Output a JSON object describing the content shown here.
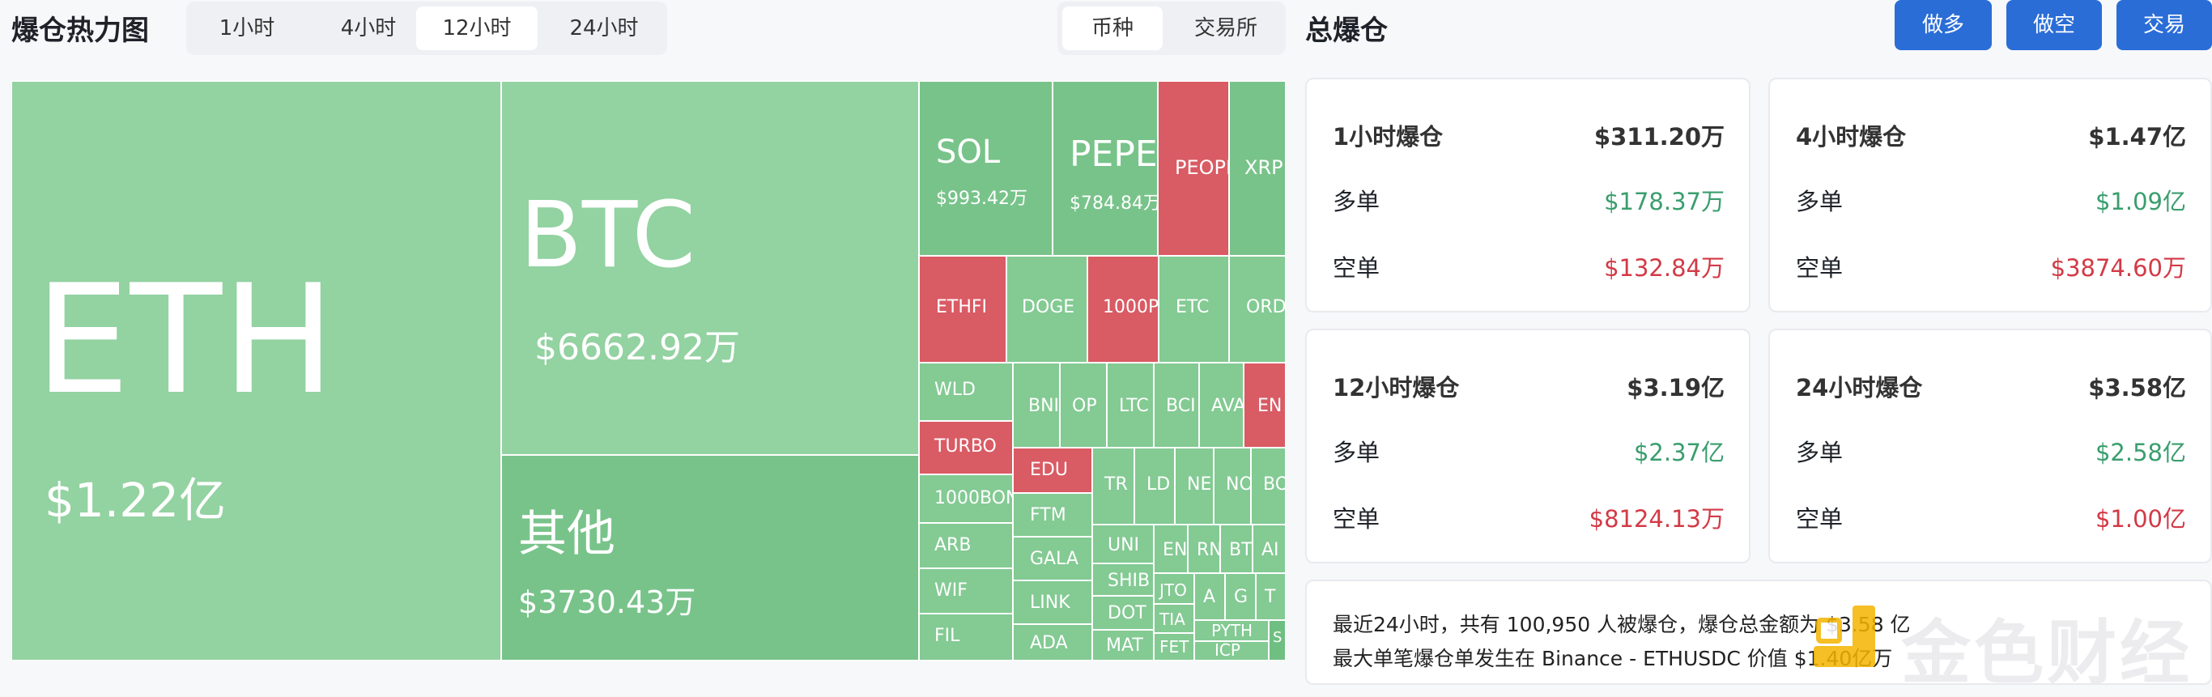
{
  "heatmap": {
    "title": "爆仓热力图",
    "time_tabs": [
      {
        "label": "1小时",
        "active": false
      },
      {
        "label": "4小时",
        "active": false
      },
      {
        "label": "12小时",
        "active": true
      },
      {
        "label": "24小时",
        "active": false
      }
    ],
    "view_tabs": [
      {
        "label": "币种",
        "active": true
      },
      {
        "label": "交易所",
        "active": false
      }
    ],
    "tiles": {
      "eth": {
        "symbol": "ETH",
        "amount": "$1.22亿"
      },
      "btc": {
        "symbol": "BTC",
        "amount": "$6662.92万"
      },
      "other": {
        "symbol": "其他",
        "amount": "$3730.43万"
      },
      "sol": {
        "symbol": "SOL",
        "amount": "$993.42万"
      },
      "pepe": {
        "symbol": "PEPE",
        "amount": "$784.84万"
      },
      "people": {
        "symbol": "PEOPL"
      },
      "xrp": {
        "symbol": "XRP"
      },
      "ethfi": {
        "symbol": "ETHFI"
      },
      "doge": {
        "symbol": "DOGE"
      },
      "k1000p": {
        "symbol": "1000P"
      },
      "etc": {
        "symbol": "ETC"
      },
      "ordi": {
        "symbol": "ORDI"
      },
      "wld": {
        "symbol": "WLD"
      },
      "bnb": {
        "symbol": "BNI"
      },
      "op": {
        "symbol": "OP"
      },
      "ltc": {
        "symbol": "LTC"
      },
      "bch": {
        "symbol": "BCI"
      },
      "avax": {
        "symbol": "AVA"
      },
      "ena": {
        "symbol": "EN"
      },
      "turbo": {
        "symbol": "TURBO"
      },
      "edu": {
        "symbol": "EDU"
      },
      "k1000bon": {
        "symbol": "1000BON"
      },
      "ftm": {
        "symbol": "FTM"
      },
      "trx": {
        "symbol": "TR"
      },
      "ldo": {
        "symbol": "LD"
      },
      "near": {
        "symbol": "NE"
      },
      "not": {
        "symbol": "NO"
      },
      "bome": {
        "symbol": "BO"
      },
      "arb": {
        "symbol": "ARB"
      },
      "gala": {
        "symbol": "GALA"
      },
      "uni": {
        "symbol": "UNI"
      },
      "en2": {
        "symbol": "EN"
      },
      "rn": {
        "symbol": "RN"
      },
      "bt": {
        "symbol": "BT"
      },
      "ar": {
        "symbol": "AI"
      },
      "wif": {
        "symbol": "WIF"
      },
      "link": {
        "symbol": "LINK"
      },
      "shib": {
        "symbol": "SHIB"
      },
      "jto": {
        "symbol": "JTO"
      },
      "a2": {
        "symbol": "A"
      },
      "g2": {
        "symbol": "G"
      },
      "t2": {
        "symbol": "T"
      },
      "dot": {
        "symbol": "DOT"
      },
      "tia": {
        "symbol": "TIA"
      },
      "fil": {
        "symbol": "FIL"
      },
      "ada": {
        "symbol": "ADA"
      },
      "matic": {
        "symbol": "MAT"
      },
      "fet": {
        "symbol": "FET"
      },
      "pyth": {
        "symbol": "PYTH"
      },
      "icp": {
        "symbol": "ICP"
      },
      "s2": {
        "symbol": "S"
      }
    }
  },
  "total": {
    "title": "总爆仓",
    "buttons": {
      "long": "做多",
      "short": "做空",
      "trade": "交易"
    },
    "cards": [
      {
        "title": "1小时爆仓",
        "total": "$311.20万",
        "long_label": "多单",
        "long": "$178.37万",
        "short_label": "空单",
        "short": "$132.84万"
      },
      {
        "title": "4小时爆仓",
        "total": "$1.47亿",
        "long_label": "多单",
        "long": "$1.09亿",
        "short_label": "空单",
        "short": "$3874.60万"
      },
      {
        "title": "12小时爆仓",
        "total": "$3.19亿",
        "long_label": "多单",
        "long": "$2.37亿",
        "short_label": "空单",
        "short": "$8124.13万"
      },
      {
        "title": "24小时爆仓",
        "total": "$3.58亿",
        "long_label": "多单",
        "long": "$2.58亿",
        "short_label": "空单",
        "short": "$1.00亿"
      }
    ],
    "summary_line1": "最近24小时，共有 100,950 人被爆仓，爆仓总金额为 $3.58 亿",
    "summary_line2": "最大单笔爆仓单发生在 Binance - ETHUSDC 价值 $1.40亿万"
  },
  "watermark": {
    "text": "金色财经"
  },
  "colors": {
    "long": "#3a9e6e",
    "short": "#d23a46",
    "button": "#2a6dd7",
    "tile_red": "#d95b64",
    "tile_green": "#93d2a1"
  }
}
